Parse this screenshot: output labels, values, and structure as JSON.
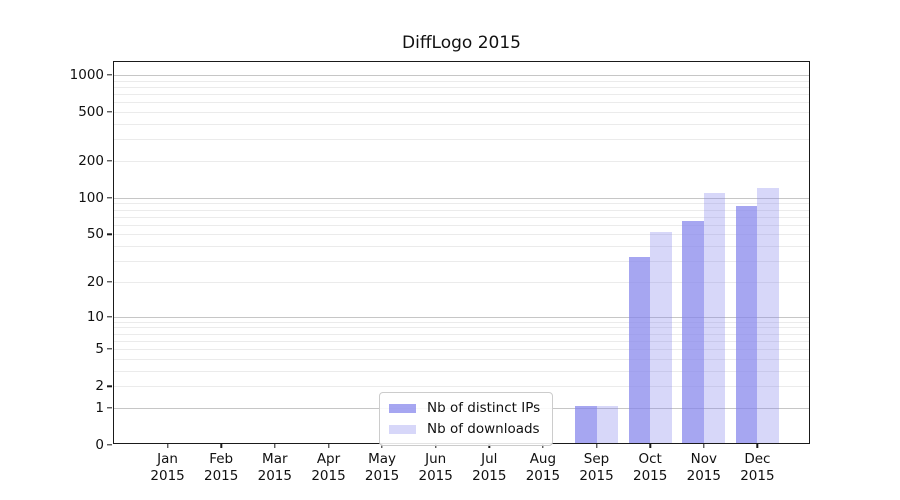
{
  "title": "DiffLogo 2015",
  "chart_data": {
    "type": "bar",
    "title": "DiffLogo 2015",
    "y_scale": "log10(value+1)",
    "grid": true,
    "legend_position": "inside lower-center",
    "categories": [
      "Jan",
      "Feb",
      "Mar",
      "Apr",
      "May",
      "Jun",
      "Jul",
      "Aug",
      "Sep",
      "Oct",
      "Nov",
      "Dec"
    ],
    "year_label": "2015",
    "series": [
      {
        "name": "Nb of distinct IPs",
        "color": "rgba(132,132,235,0.72)",
        "values": [
          0,
          0,
          0,
          0,
          0,
          0,
          0,
          0,
          1,
          31,
          62,
          82
        ]
      },
      {
        "name": "Nb of downloads",
        "color": "rgba(132,132,235,0.32)",
        "values": [
          0,
          0,
          0,
          0,
          0,
          0,
          0,
          0,
          1,
          50,
          105,
          115
        ]
      }
    ],
    "y_ticks": [
      0,
      1,
      2,
      5,
      10,
      20,
      50,
      100,
      200,
      500,
      1000
    ],
    "major_gridline_values": [
      1,
      10,
      100,
      1000
    ],
    "minor_gridline_values": [
      2,
      3,
      4,
      5,
      6,
      7,
      8,
      9,
      20,
      30,
      40,
      50,
      60,
      70,
      80,
      90,
      200,
      300,
      400,
      500,
      600,
      700,
      800,
      900
    ],
    "y_axis_top_log_units": 3.106,
    "ylim": [
      0,
      1275
    ]
  },
  "colors": {
    "background": "#ffffff",
    "spine": "#1a1a1a",
    "minor_gridline": "#ebebeb",
    "major_gridline": "#c6c6c6",
    "text": "#111111",
    "legend_border": "#cccccc"
  }
}
